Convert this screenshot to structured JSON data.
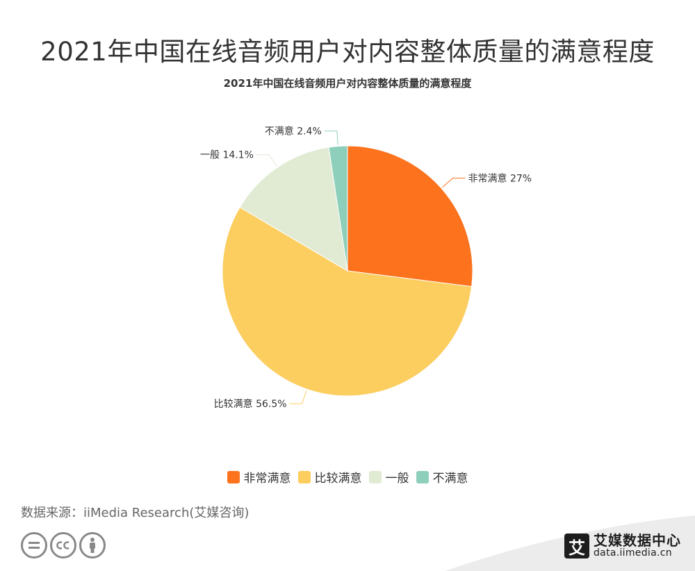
{
  "page": {
    "title": "2021年中国在线音频用户对内容整体质量的满意程度",
    "source": "数据来源：iiMedia Research(艾媒咨询)"
  },
  "chart_data": {
    "type": "pie",
    "title": "2021年中国在线音频用户对内容整体质量的满意程度",
    "slices": [
      {
        "label": "非常满意",
        "value": 27,
        "value_label": "27%",
        "color": "#fc721d"
      },
      {
        "label": "比较满意",
        "value": 56.5,
        "value_label": "56.5%",
        "color": "#fccd5f"
      },
      {
        "label": "一般",
        "value": 14.1,
        "value_label": "14.1%",
        "color": "#e1ead2"
      },
      {
        "label": "不满意",
        "value": 2.4,
        "value_label": "2.4%",
        "color": "#8ecfbc"
      }
    ],
    "start": "12 o'clock",
    "direction": "clockwise",
    "legend_position": "bottom"
  },
  "footer": {
    "license_icons": [
      "equals-icon",
      "cc-icon",
      "person-icon"
    ],
    "brand_logo_char": "艾",
    "brand_name": "艾媒数据中心",
    "brand_url": "data.iimedia.cn"
  }
}
